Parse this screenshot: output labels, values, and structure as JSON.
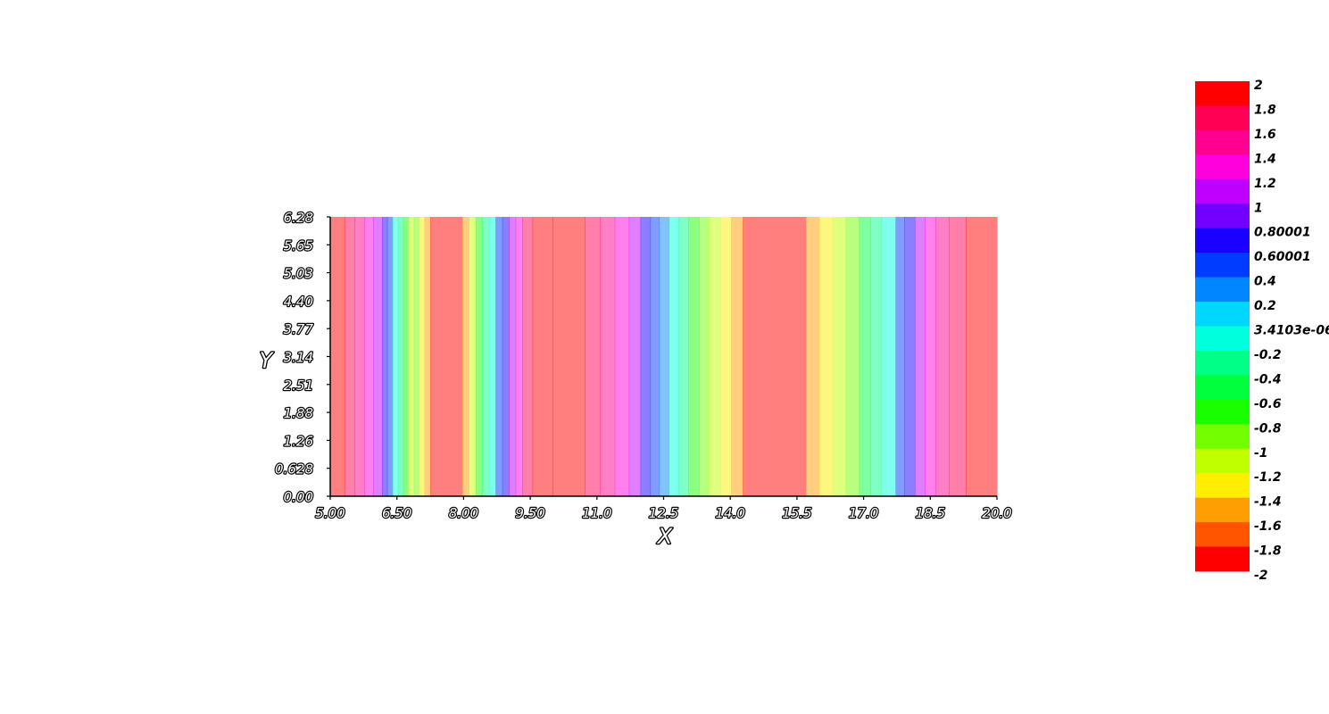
{
  "chart_data": {
    "type": "heatmap",
    "xlabel": "X",
    "ylabel": "Y",
    "xlim": [
      5.0,
      20.0
    ],
    "ylim": [
      0.0,
      6.28
    ],
    "x_ticks": [
      "5.00",
      "6.50",
      "8.00",
      "9.50",
      "11.0",
      "12.5",
      "14.0",
      "15.5",
      "17.0",
      "18.5",
      "20.0"
    ],
    "y_ticks": [
      "0.00",
      "0.628",
      "1.26",
      "1.88",
      "2.51",
      "3.14",
      "3.77",
      "4.40",
      "5.03",
      "5.65",
      "6.28"
    ],
    "field_opacity": 0.5,
    "bands": [
      {
        "x0": 5.0,
        "x1": 5.33,
        "value": -2.0
      },
      {
        "x0": 5.33,
        "x1": 5.55,
        "value": 1.6
      },
      {
        "x0": 5.55,
        "x1": 5.77,
        "value": 1.4
      },
      {
        "x0": 5.77,
        "x1": 5.97,
        "value": 1.2
      },
      {
        "x0": 5.97,
        "x1": 6.17,
        "value": 1.0
      },
      {
        "x0": 6.17,
        "x1": 6.28,
        "value": 0.8
      },
      {
        "x0": 6.28,
        "x1": 6.4,
        "value": 0.4
      },
      {
        "x0": 6.4,
        "x1": 6.52,
        "value": 0.0
      },
      {
        "x0": 6.52,
        "x1": 6.64,
        "value": -0.4
      },
      {
        "x0": 6.64,
        "x1": 6.76,
        "value": -0.8
      },
      {
        "x0": 6.76,
        "x1": 6.88,
        "value": -1.2
      },
      {
        "x0": 6.88,
        "x1": 7.0,
        "value": -1.0
      },
      {
        "x0": 7.0,
        "x1": 7.12,
        "value": -1.4
      },
      {
        "x0": 7.12,
        "x1": 7.25,
        "value": -1.6
      },
      {
        "x0": 7.25,
        "x1": 7.97,
        "value": -2.0
      },
      {
        "x0": 7.97,
        "x1": 8.12,
        "value": -1.6
      },
      {
        "x0": 8.12,
        "x1": 8.27,
        "value": -1.2
      },
      {
        "x0": 8.27,
        "x1": 8.42,
        "value": -0.8
      },
      {
        "x0": 8.42,
        "x1": 8.57,
        "value": -0.4
      },
      {
        "x0": 8.57,
        "x1": 8.72,
        "value": 0.0
      },
      {
        "x0": 8.72,
        "x1": 8.87,
        "value": 0.4
      },
      {
        "x0": 8.87,
        "x1": 9.02,
        "value": 0.8
      },
      {
        "x0": 9.02,
        "x1": 9.17,
        "value": 1.0
      },
      {
        "x0": 9.17,
        "x1": 9.32,
        "value": 1.2
      },
      {
        "x0": 9.32,
        "x1": 9.55,
        "value": 1.6
      },
      {
        "x0": 9.55,
        "x1": 10.0,
        "value": -2.0
      },
      {
        "x0": 10.0,
        "x1": 10.73,
        "value": -2.0
      },
      {
        "x0": 10.73,
        "x1": 11.07,
        "value": 1.6
      },
      {
        "x0": 11.07,
        "x1": 11.4,
        "value": 1.4
      },
      {
        "x0": 11.4,
        "x1": 11.72,
        "value": 1.2
      },
      {
        "x0": 11.72,
        "x1": 11.98,
        "value": 1.0
      },
      {
        "x0": 11.98,
        "x1": 12.2,
        "value": 0.8
      },
      {
        "x0": 12.2,
        "x1": 12.4,
        "value": 0.4
      },
      {
        "x0": 12.4,
        "x1": 12.62,
        "value": 0.2
      },
      {
        "x0": 12.62,
        "x1": 12.84,
        "value": 0.0
      },
      {
        "x0": 12.84,
        "x1": 13.06,
        "value": -0.4
      },
      {
        "x0": 13.06,
        "x1": 13.3,
        "value": -0.8
      },
      {
        "x0": 13.3,
        "x1": 13.52,
        "value": -1.0
      },
      {
        "x0": 13.52,
        "x1": 13.78,
        "value": -1.2
      },
      {
        "x0": 13.78,
        "x1": 14.02,
        "value": -1.4
      },
      {
        "x0": 14.02,
        "x1": 14.28,
        "value": -1.6
      },
      {
        "x0": 14.28,
        "x1": 15.7,
        "value": -2.0
      },
      {
        "x0": 15.7,
        "x1": 16.0,
        "value": -1.6
      },
      {
        "x0": 16.0,
        "x1": 16.3,
        "value": -1.4
      },
      {
        "x0": 16.3,
        "x1": 16.6,
        "value": -1.2
      },
      {
        "x0": 16.6,
        "x1": 16.9,
        "value": -1.0
      },
      {
        "x0": 16.9,
        "x1": 17.15,
        "value": -0.6
      },
      {
        "x0": 17.15,
        "x1": 17.4,
        "value": -0.4
      },
      {
        "x0": 17.4,
        "x1": 17.72,
        "value": 0.0
      },
      {
        "x0": 17.72,
        "x1": 17.92,
        "value": 0.4
      },
      {
        "x0": 17.92,
        "x1": 18.15,
        "value": 0.8
      },
      {
        "x0": 18.15,
        "x1": 18.38,
        "value": 1.0
      },
      {
        "x0": 18.38,
        "x1": 18.62,
        "value": 1.2
      },
      {
        "x0": 18.62,
        "x1": 18.92,
        "value": 1.4
      },
      {
        "x0": 18.92,
        "x1": 19.3,
        "value": 1.6
      },
      {
        "x0": 19.3,
        "x1": 20.0,
        "value": -2.0
      }
    ],
    "colorbar": {
      "labels": [
        "2",
        "1.8",
        "1.6",
        "1.4",
        "1.2",
        "1",
        "0.80001",
        "0.60001",
        "0.4",
        "0.2",
        "3.4103e-06",
        "-0.2",
        "-0.4",
        "-0.6",
        "-0.8",
        "-1",
        "-1.2",
        "-1.4",
        "-1.6",
        "-1.8",
        "-2"
      ],
      "levels": [
        2.0,
        1.8,
        1.6,
        1.4,
        1.2,
        1.0,
        0.80001,
        0.60001,
        0.4,
        0.2,
        3.4103e-06,
        -0.2,
        -0.4,
        -0.6,
        -0.8,
        -1.0,
        -1.2,
        -1.4,
        -1.6,
        -1.8,
        -2.0
      ],
      "colors": [
        "#ff0000",
        "#ff0055",
        "#ff0090",
        "#ff00dc",
        "#c000ff",
        "#7200ff",
        "#1900ff",
        "#003cff",
        "#0087ff",
        "#00d7ff",
        "#00ffdc",
        "#00ff87",
        "#00ff3c",
        "#18ff00",
        "#72ff00",
        "#c0ff00",
        "#ffee00",
        "#ff9e00",
        "#ff5500",
        "#ff0000"
      ]
    }
  }
}
